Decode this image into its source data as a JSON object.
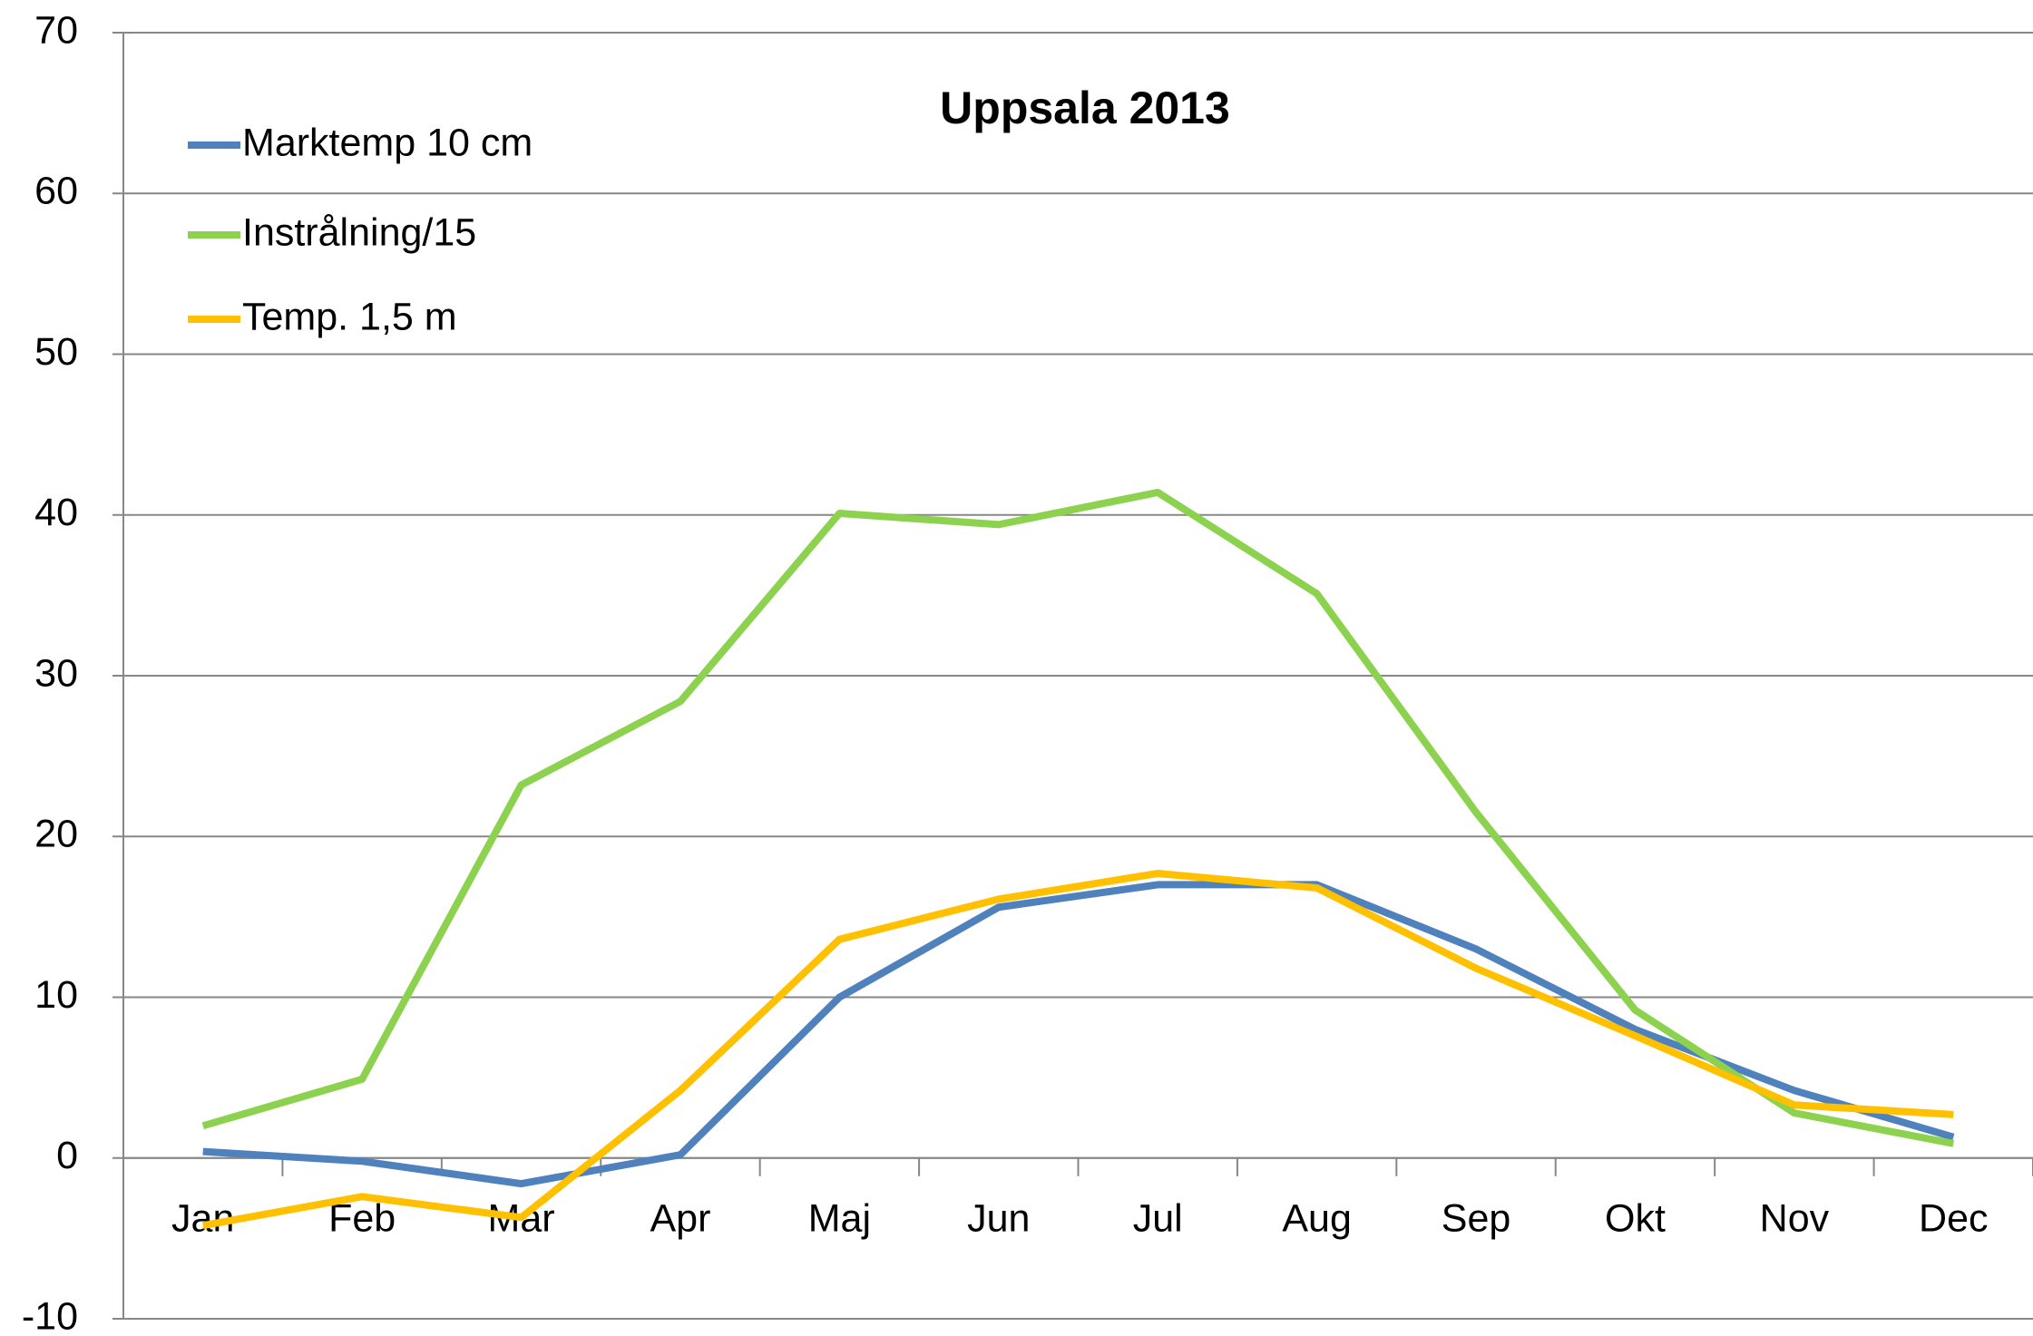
{
  "chart_data": {
    "type": "line",
    "title": "Uppsala 2013",
    "categories": [
      "Jan",
      "Feb",
      "Mar",
      "Apr",
      "Maj",
      "Jun",
      "Jul",
      "Aug",
      "Sep",
      "Okt",
      "Nov",
      "Dec"
    ],
    "series": [
      {
        "name": "Marktemp 10 cm",
        "color": "#4f81bd",
        "values": [
          0.4,
          -0.2,
          -1.6,
          0.2,
          10,
          15.6,
          17,
          17,
          13,
          8,
          4.2,
          1.3
        ]
      },
      {
        "name": "Instrålning/15",
        "color": "#8cd24f",
        "values": [
          2,
          4.9,
          23.2,
          28.4,
          40.1,
          39.4,
          41.4,
          35.1,
          21.5,
          9.2,
          2.8,
          0.9
        ]
      },
      {
        "name": "Temp. 1,5 m",
        "color": "#ffc000",
        "values": [
          -4.2,
          -2.4,
          -3.7,
          4.2,
          13.6,
          16.1,
          17.7,
          16.8,
          11.8,
          7.6,
          3.3,
          2.7
        ]
      }
    ],
    "ylim": [
      -10,
      70
    ],
    "yticks": [
      -10,
      0,
      10,
      20,
      30,
      40,
      50,
      60,
      70
    ],
    "grid": true,
    "legend": "upper left"
  }
}
